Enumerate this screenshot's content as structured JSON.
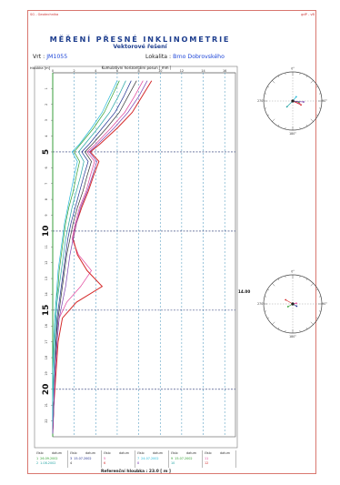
{
  "header": {
    "left": "SG - Geotechnika",
    "right": "gdP - vB",
    "title": "MĚŘENÍ PŘESNÉ INKLINOMETRIE",
    "subtitle": "Vektorové řešení",
    "borehole_label": "Vrt :",
    "borehole_value": "JM1055",
    "locality_label": "Lokalita :",
    "locality_value": "Brno Dobrovského"
  },
  "chart_data": {
    "type": "line",
    "xlabel": "Kumulativní horizontální posun [ mm ]",
    "ylabel": "Hloubka [m]",
    "xlim": [
      0,
      17
    ],
    "ylim": [
      0,
      23
    ],
    "x_ticks": [
      0,
      2,
      4,
      6,
      8,
      10,
      12,
      14,
      16,
      18
    ],
    "y_ticks": [
      1,
      2,
      3,
      4,
      5,
      6,
      7,
      8,
      9,
      10,
      11,
      12,
      13,
      14,
      15,
      16,
      17,
      18,
      19,
      20,
      21,
      22
    ],
    "y_ticks_major": [
      5,
      10,
      15,
      20
    ],
    "reference_depths": [
      5,
      10,
      15,
      20
    ],
    "series": [
      {
        "color": "#2f9f2f",
        "values": [
          [
            6.2,
            0.5
          ],
          [
            5.5,
            1.5
          ],
          [
            4.8,
            2.5
          ],
          [
            3.8,
            3.5
          ],
          [
            2.6,
            4.5
          ],
          [
            2.0,
            5
          ],
          [
            2.5,
            5.6
          ],
          [
            2.2,
            6.5
          ],
          [
            1.9,
            7.5
          ],
          [
            1.5,
            8.5
          ],
          [
            1.2,
            9.5
          ],
          [
            1.0,
            10.5
          ],
          [
            0.8,
            11.5
          ],
          [
            0.6,
            12.5
          ],
          [
            0.5,
            13.5
          ],
          [
            0.3,
            14.5
          ],
          [
            0.2,
            15.5
          ],
          [
            0.1,
            17
          ],
          [
            0.0,
            19
          ],
          [
            0.0,
            21
          ],
          [
            0.0,
            22.8
          ]
        ]
      },
      {
        "color": "#22a3a3",
        "values": [
          [
            6.8,
            0.5
          ],
          [
            6.1,
            1.5
          ],
          [
            5.3,
            2.5
          ],
          [
            4.2,
            3.5
          ],
          [
            3.0,
            4.5
          ],
          [
            2.4,
            5
          ],
          [
            2.9,
            5.6
          ],
          [
            2.6,
            6.5
          ],
          [
            2.2,
            7.5
          ],
          [
            1.8,
            8.5
          ],
          [
            1.5,
            9.5
          ],
          [
            1.2,
            10.5
          ],
          [
            1.0,
            11.5
          ],
          [
            0.8,
            12.5
          ],
          [
            0.6,
            13.5
          ],
          [
            0.4,
            14.5
          ],
          [
            0.3,
            15.5
          ],
          [
            0.2,
            17
          ],
          [
            0.1,
            19
          ],
          [
            0.0,
            21
          ],
          [
            0.0,
            22.8
          ]
        ]
      },
      {
        "color": "#1f2f8f",
        "values": [
          [
            7.3,
            0.5
          ],
          [
            6.6,
            1.5
          ],
          [
            5.8,
            2.5
          ],
          [
            4.6,
            3.5
          ],
          [
            3.4,
            4.5
          ],
          [
            2.7,
            5
          ],
          [
            3.3,
            5.6
          ],
          [
            2.9,
            6.5
          ],
          [
            2.5,
            7.5
          ],
          [
            2.1,
            8.5
          ],
          [
            1.7,
            9.5
          ],
          [
            1.4,
            10.5
          ],
          [
            1.2,
            11.5
          ],
          [
            1.0,
            12.5
          ],
          [
            0.8,
            13.5
          ],
          [
            0.6,
            14.5
          ],
          [
            0.4,
            15.5
          ],
          [
            0.3,
            17
          ],
          [
            0.2,
            19
          ],
          [
            0.1,
            21
          ],
          [
            0.0,
            22.8
          ]
        ]
      },
      {
        "color": "#333333",
        "values": [
          [
            7.8,
            0.5
          ],
          [
            7.0,
            1.5
          ],
          [
            6.2,
            2.5
          ],
          [
            5.0,
            3.5
          ],
          [
            3.7,
            4.5
          ],
          [
            3.0,
            5
          ],
          [
            3.6,
            5.6
          ],
          [
            3.2,
            6.5
          ],
          [
            2.8,
            7.5
          ],
          [
            2.3,
            8.5
          ],
          [
            1.9,
            9.5
          ],
          [
            1.6,
            10.5
          ],
          [
            1.3,
            11.5
          ],
          [
            1.1,
            12.5
          ],
          [
            0.9,
            13.5
          ],
          [
            0.7,
            14.5
          ],
          [
            0.5,
            15.5
          ],
          [
            0.3,
            17
          ],
          [
            0.2,
            19
          ],
          [
            0.1,
            21
          ],
          [
            0.0,
            22.8
          ]
        ]
      },
      {
        "color": "#e0409a",
        "values": [
          [
            8.4,
            0.5
          ],
          [
            7.6,
            1.5
          ],
          [
            6.7,
            2.5
          ],
          [
            5.4,
            3.5
          ],
          [
            4.0,
            4.5
          ],
          [
            3.2,
            5
          ],
          [
            3.9,
            5.6
          ],
          [
            3.5,
            6.5
          ],
          [
            3.1,
            7.5
          ],
          [
            2.5,
            8.5
          ],
          [
            2.1,
            9.5
          ],
          [
            1.8,
            10.5
          ],
          [
            2.4,
            11.5
          ],
          [
            3.6,
            12.5
          ],
          [
            2.6,
            13.5
          ],
          [
            1.3,
            14.5
          ],
          [
            0.6,
            15.5
          ],
          [
            0.4,
            17
          ],
          [
            0.2,
            19
          ],
          [
            0.1,
            21
          ],
          [
            0.0,
            22.8
          ]
        ]
      },
      {
        "color": "#d42a2a",
        "values": [
          [
            9.2,
            0.5
          ],
          [
            8.3,
            1.5
          ],
          [
            7.4,
            2.5
          ],
          [
            6.0,
            3.5
          ],
          [
            4.4,
            4.5
          ],
          [
            3.5,
            5
          ],
          [
            4.3,
            5.6
          ],
          [
            3.8,
            6.5
          ],
          [
            3.3,
            7.5
          ],
          [
            2.7,
            8.5
          ],
          [
            2.2,
            9.5
          ],
          [
            1.9,
            10.5
          ],
          [
            2.3,
            11.5
          ],
          [
            3.2,
            12.5
          ],
          [
            4.6,
            13.5
          ],
          [
            2.2,
            14.5
          ],
          [
            0.9,
            15.5
          ],
          [
            0.5,
            17
          ],
          [
            0.3,
            19
          ],
          [
            0.1,
            21
          ],
          [
            0.0,
            22.8
          ]
        ]
      },
      {
        "color": "#22b8d8",
        "values": [
          [
            6.0,
            0.5
          ],
          [
            5.3,
            1.5
          ],
          [
            4.6,
            2.5
          ],
          [
            3.6,
            3.5
          ],
          [
            2.5,
            4.5
          ],
          [
            1.8,
            5
          ],
          [
            2.3,
            5.6
          ],
          [
            2.0,
            6.5
          ],
          [
            1.7,
            7.5
          ],
          [
            1.4,
            8.5
          ],
          [
            1.1,
            9.5
          ],
          [
            0.9,
            10.5
          ],
          [
            0.7,
            11.5
          ],
          [
            0.5,
            12.5
          ],
          [
            0.4,
            13.5
          ],
          [
            0.3,
            14.5
          ],
          [
            0.2,
            15.5
          ],
          [
            0.1,
            17
          ],
          [
            0.0,
            19
          ],
          [
            0.0,
            21
          ],
          [
            0.0,
            22.8
          ]
        ]
      },
      {
        "color": "#7a3fb0",
        "values": [
          [
            8.8,
            0.5
          ],
          [
            8.0,
            1.5
          ],
          [
            7.0,
            2.5
          ],
          [
            5.7,
            3.5
          ],
          [
            4.2,
            4.5
          ],
          [
            3.4,
            5
          ],
          [
            4.1,
            5.6
          ],
          [
            3.7,
            6.5
          ],
          [
            3.2,
            7.5
          ],
          [
            2.6,
            8.5
          ],
          [
            2.2,
            9.5
          ],
          [
            1.9,
            10.5
          ],
          [
            1.6,
            11.5
          ],
          [
            1.4,
            12.5
          ],
          [
            1.2,
            13.5
          ],
          [
            0.9,
            14.5
          ],
          [
            0.6,
            15.5
          ],
          [
            0.4,
            17
          ],
          [
            0.2,
            19
          ],
          [
            0.1,
            21
          ],
          [
            0.0,
            22.8
          ]
        ]
      }
    ]
  },
  "legend": {
    "columns": [
      {
        "h1": "číslo",
        "h2": "datum",
        "entries": [
          {
            "num": "1",
            "date": "26.09.2002",
            "color": "#2f9f2f"
          },
          {
            "num": "2",
            "date": "1.08.2002",
            "color": "#22a3a3"
          }
        ]
      },
      {
        "h1": "číslo",
        "h2": "datum",
        "entries": [
          {
            "num": "3",
            "date": "15.07.2002",
            "color": "#1f2f8f"
          },
          {
            "num": "4",
            "date": "",
            "color": "#333333"
          }
        ]
      },
      {
        "h1": "číslo",
        "h2": "datum",
        "entries": [
          {
            "num": "5",
            "date": "",
            "color": "#e0409a"
          },
          {
            "num": "6",
            "date": "",
            "color": "#d42a2a"
          }
        ]
      },
      {
        "h1": "číslo",
        "h2": "datum",
        "entries": [
          {
            "num": "7",
            "date": "24.07.2002",
            "color": "#22b8d8"
          },
          {
            "num": "8",
            "date": "",
            "color": "#7a3fb0"
          }
        ]
      },
      {
        "h1": "číslo",
        "h2": "datum",
        "entries": [
          {
            "num": "9",
            "date": "15.07.2002",
            "color": "#2f9f2f"
          },
          {
            "num": "10",
            "date": "",
            "color": "#22a3a3"
          }
        ]
      },
      {
        "h1": "číslo",
        "h2": "datum",
        "entries": [
          {
            "num": "11",
            "date": "",
            "color": "#e0409a"
          },
          {
            "num": "12",
            "date": "",
            "color": "#d42a2a"
          }
        ]
      }
    ]
  },
  "reference_depth_text": "Referenční hloubka : 23.0 [ m ]",
  "polar_marker_label": "14.00",
  "polar_directions": [
    "0°",
    "90°",
    "180°",
    "270°"
  ],
  "colors": {
    "accent": "#1f3f8f",
    "frame": "#d9776f",
    "grid": "#3a8fb8"
  }
}
